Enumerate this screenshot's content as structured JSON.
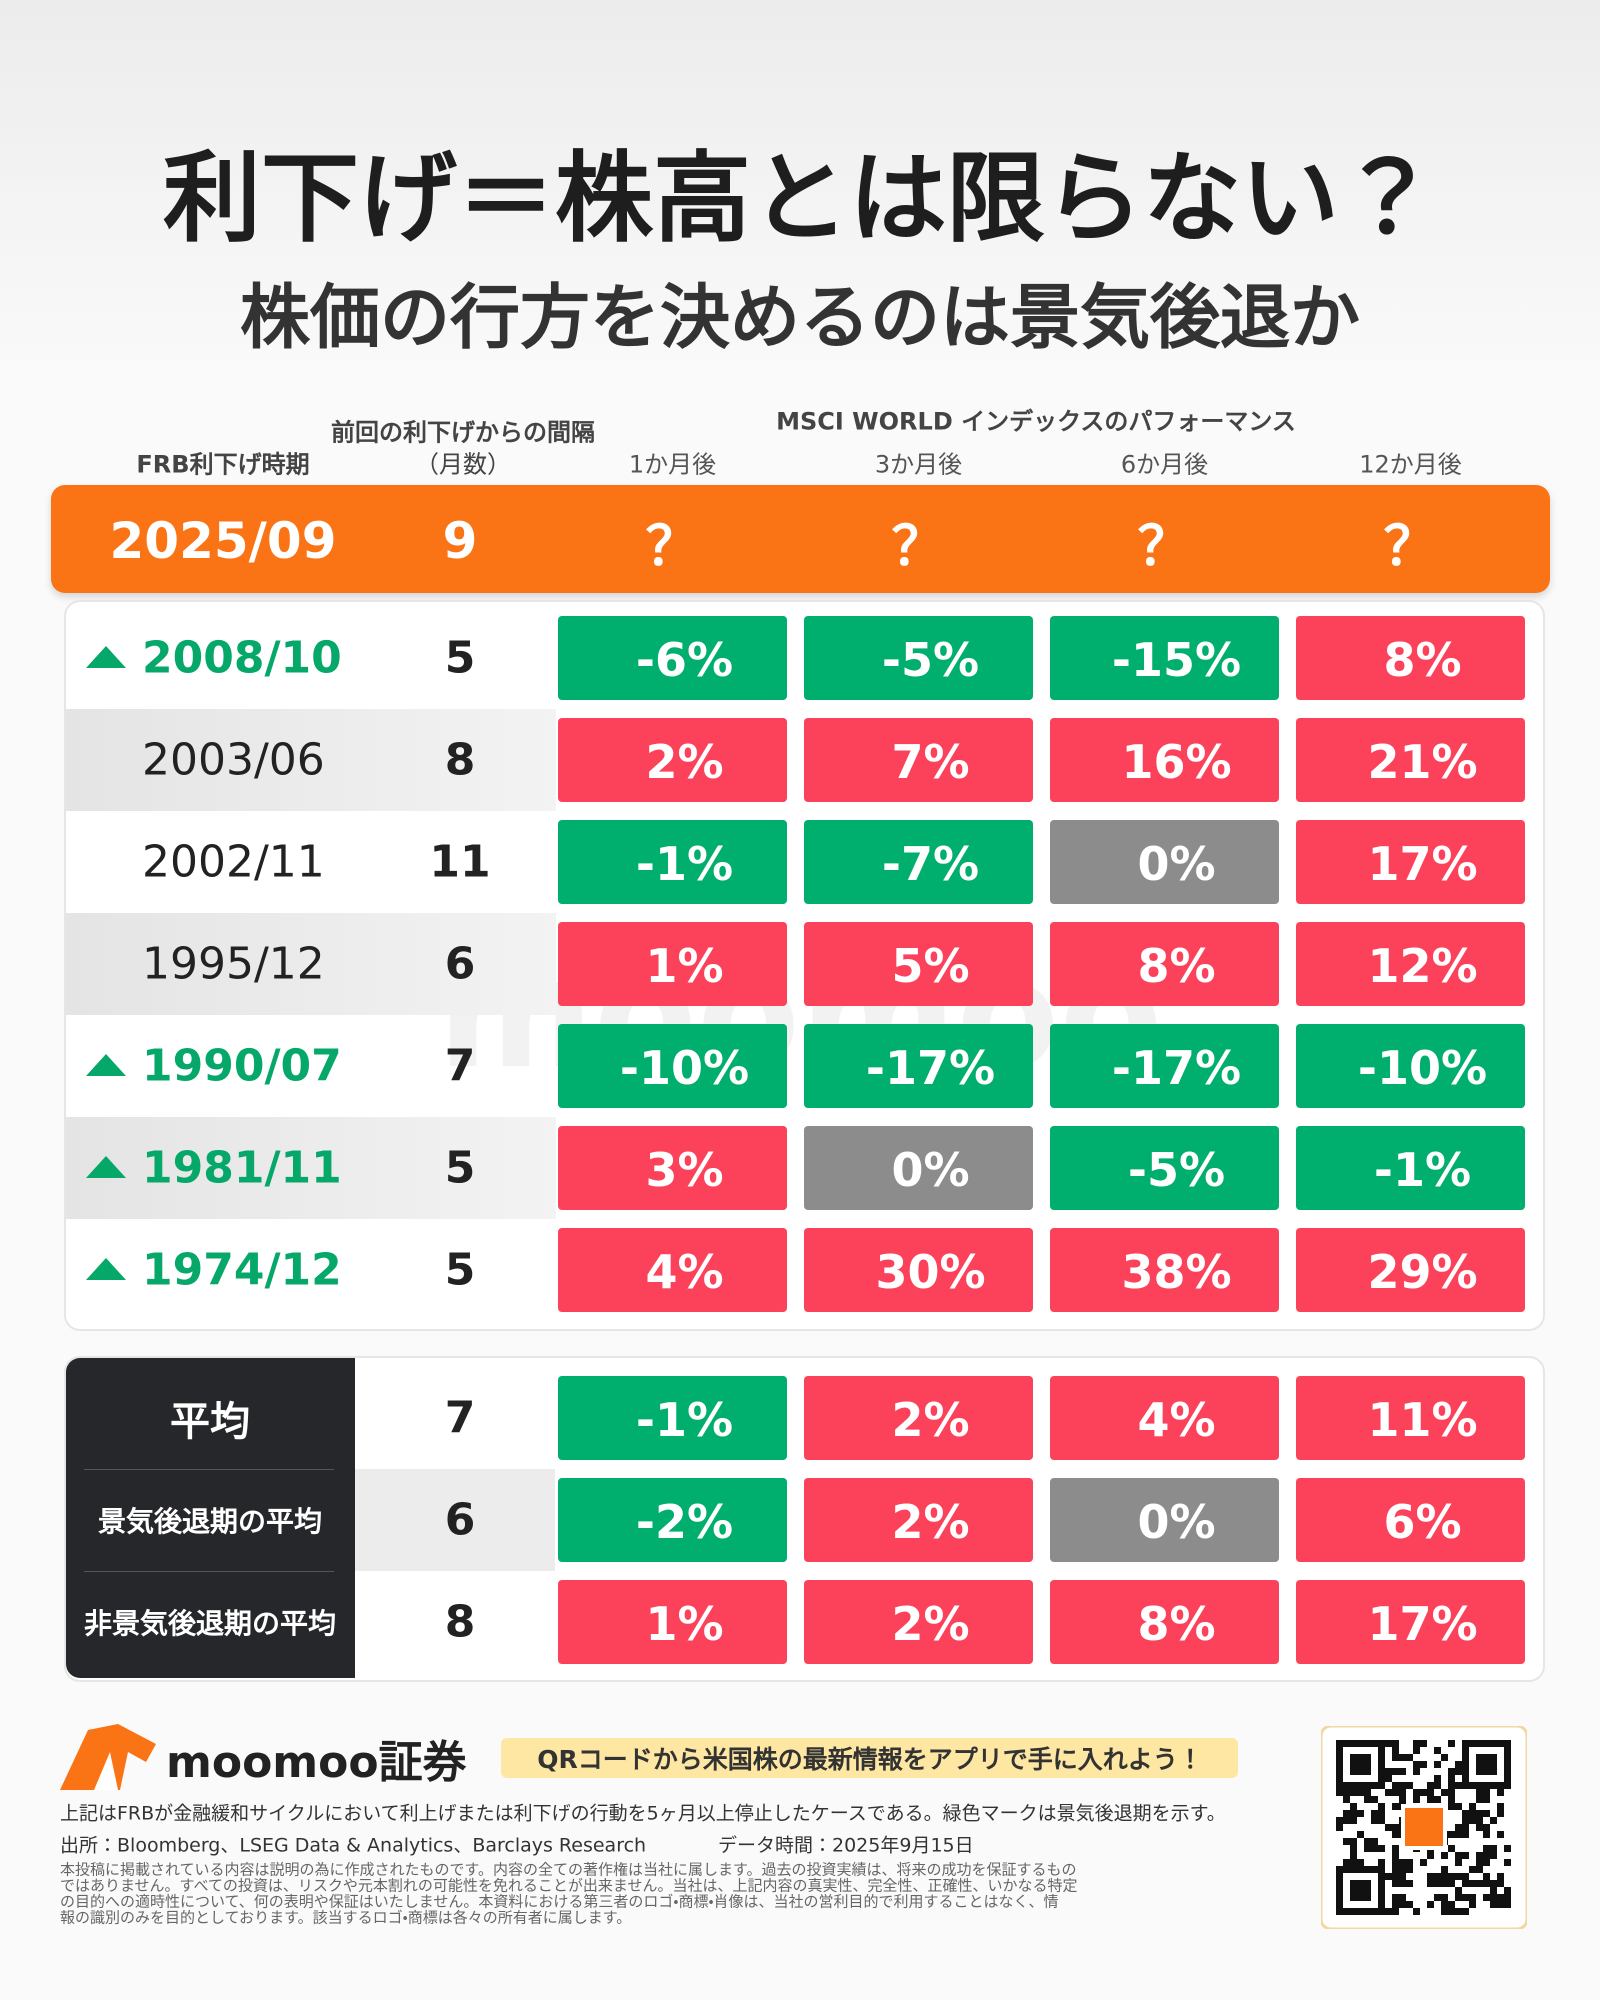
{
  "header": {
    "title": "利下げ＝株高とは限らない？",
    "subtitle": "株価の行方を決めるのは景気後退か"
  },
  "table": {
    "date_header": "FRB利下げ時期",
    "interval_header": "前回の利下げからの間隔",
    "interval_unit": "（月数）",
    "performance_header": "MSCI WORLD インデックスのパフォーマンス",
    "columns": [
      "1か月後",
      "3か月後",
      "6か月後",
      "12か月後"
    ],
    "current": {
      "date": "2025/09",
      "interval": 9,
      "values": [
        "？",
        "？",
        "？",
        "？"
      ]
    },
    "rows": [
      {
        "date": "2008/10",
        "recession": true,
        "interval": 5,
        "values": [
          "-6%",
          "-5%",
          "-15%",
          "8%"
        ]
      },
      {
        "date": "2003/06",
        "recession": false,
        "interval": 8,
        "values": [
          "2%",
          "7%",
          "16%",
          "21%"
        ]
      },
      {
        "date": "2002/11",
        "recession": false,
        "interval": 11,
        "values": [
          "-1%",
          "-7%",
          "0%",
          "17%"
        ]
      },
      {
        "date": "1995/12",
        "recession": false,
        "interval": 6,
        "values": [
          "1%",
          "5%",
          "8%",
          "12%"
        ]
      },
      {
        "date": "1990/07",
        "recession": true,
        "interval": 7,
        "values": [
          "-10%",
          "-17%",
          "-17%",
          "-10%"
        ]
      },
      {
        "date": "1981/11",
        "recession": true,
        "interval": 5,
        "values": [
          "3%",
          "0%",
          "-5%",
          "-1%"
        ]
      },
      {
        "date": "1974/12",
        "recession": true,
        "interval": 5,
        "values": [
          "4%",
          "30%",
          "38%",
          "29%"
        ]
      }
    ],
    "watermark": "moomoo"
  },
  "averages": [
    {
      "label": "平均",
      "interval": 7,
      "values": [
        "-1%",
        "2%",
        "4%",
        "11%"
      ]
    },
    {
      "label": "景気後退期の平均",
      "interval": 6,
      "values": [
        "-2%",
        "2%",
        "0%",
        "6%"
      ]
    },
    {
      "label": "非景気後退期の平均",
      "interval": 8,
      "values": [
        "1%",
        "2%",
        "8%",
        "17%"
      ]
    }
  ],
  "footer": {
    "brand": "moomoo証券",
    "banner": "QRコードから米国株の最新情報をアプリで手に入れよう！",
    "note": "上記はFRBが金融緩和サイクルにおいて利上げまたは利下げの行動を5ヶ月以上停止したケースである。緑色マークは景気後退期を示す。",
    "source": "出所：Bloomberg、LSEG Data & Analytics、Barclays Research",
    "data_time": "データ時間：2025年9月15日",
    "disclaimer": [
      "本投稿に掲載されている内容は説明の為に作成されたものです。内容の全ての著作権は当社に属します。過去の投資実績は、将来の成功を保証するもの",
      "ではありません。すべての投資は、リスクや元本割れの可能性を免れることが出来ません。当社は、上記内容の真実性、完全性、正確性、いかなる特定",
      "の目的への適時性について、何の表明や保証はいたしません。本資料における第三者のロゴ・商標・肖像は、当社の営利目的で利用することはなく、情",
      "報の識別のみを目的としております。該当するロゴ・商標は各々の所有者に属します。"
    ]
  }
}
